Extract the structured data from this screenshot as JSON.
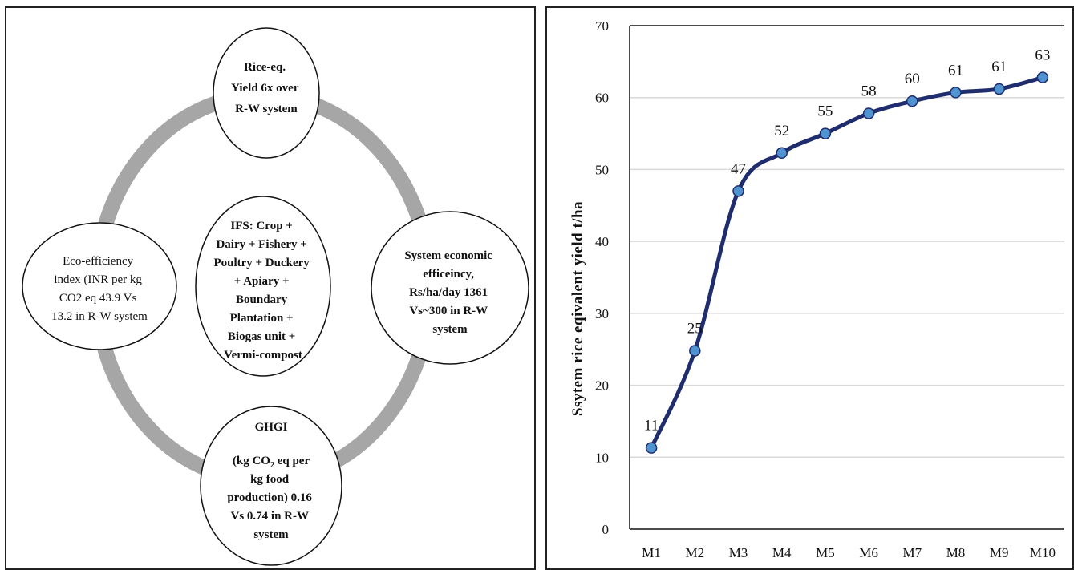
{
  "diagram": {
    "ring_color": "#a6a6a6",
    "top_node": {
      "lines": [
        "Rice-eq.",
        "Yield 6x over",
        "R-W system"
      ]
    },
    "center_node": {
      "lines": [
        "IFS:  Crop +",
        "Dairy + Fishery +",
        "Poultry + Duckery",
        "+ Apiary +",
        "Boundary",
        "Plantation +",
        "Biogas unit +",
        "Vermi-compost"
      ]
    },
    "left_node": {
      "lines": [
        "Eco-efficiency",
        "index (INR per kg",
        "CO2 eq 43.9 Vs",
        "13.2 in R-W system"
      ]
    },
    "right_node": {
      "lines": [
        "System economic",
        "efficeincy,",
        "Rs/ha/day 1361",
        "Vs~300 in R-W",
        "system"
      ]
    },
    "bottom_node": {
      "title": "GHGI",
      "line1_pre": "(kg CO",
      "line1_sub": "2",
      "line1_post": " eq per",
      "lines_rest": [
        "kg food",
        "production) 0.16",
        "Vs 0.74 in R-W",
        "system"
      ]
    }
  },
  "chart_data": {
    "type": "line",
    "smooth": true,
    "categories": [
      "M1",
      "M2",
      "M3",
      "M4",
      "M5",
      "M6",
      "M7",
      "M8",
      "M9",
      "M10"
    ],
    "values": [
      11.3,
      24.8,
      47.0,
      52.3,
      55.0,
      57.8,
      59.5,
      60.7,
      61.2,
      62.8
    ],
    "data_labels": [
      "11",
      "25",
      "47",
      "52",
      "55",
      "58",
      "60",
      "61",
      "61",
      "63"
    ],
    "title": "",
    "xlabel": "",
    "ylabel": "Ssytem rice eqivalent yield  t/ha",
    "ylim": [
      0,
      70
    ],
    "yticks": [
      0,
      10,
      20,
      30,
      40,
      50,
      60,
      70
    ],
    "grid": true,
    "line_color": "#1f2d6e",
    "marker_color": "#4f93d1",
    "grid_color": "#d9d9d9"
  }
}
